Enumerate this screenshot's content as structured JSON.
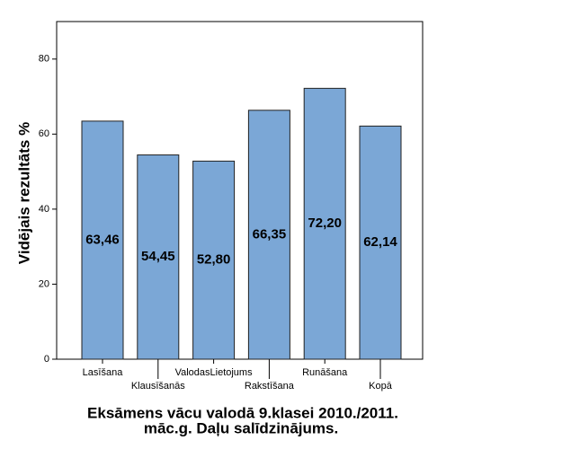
{
  "chart_data": {
    "type": "bar",
    "title": [
      "Eksāmens vācu valodā 9.klasei 2010./2011.",
      "māc.g. Daļu salīdzinājums."
    ],
    "y_label": "Vidējais rezultāts %",
    "categories": [
      "Lasīšana",
      "Klausīšanās",
      "ValodasLietojums",
      "Rakstīšana",
      "Runāšana",
      "Kopā"
    ],
    "values": [
      63.46,
      54.45,
      52.8,
      66.35,
      72.2,
      62.14
    ],
    "value_labels": [
      "63,46",
      "54,45",
      "52,80",
      "66,35",
      "72,20",
      "62,14"
    ],
    "color": "#7ba7d6",
    "ylim": [
      0,
      90
    ],
    "yticks": [
      0,
      20,
      40,
      60,
      80
    ]
  }
}
